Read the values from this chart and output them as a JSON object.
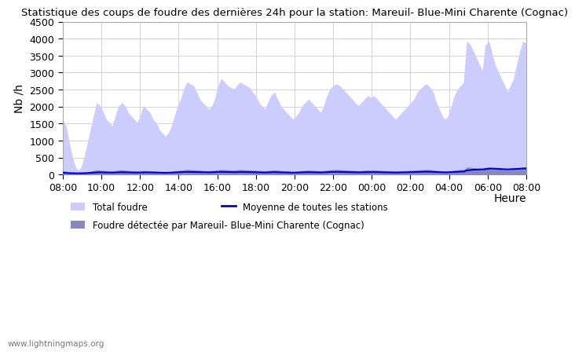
{
  "title": "Statistique des coups de foudre des dernières 24h pour la station: Mareuil- Blue-Mini Charente (Cognac)",
  "ylabel": "Nb /h",
  "xlabel": "Heure",
  "watermark": "www.lightningmaps.org",
  "x_ticks": [
    "08:00",
    "10:00",
    "12:00",
    "14:00",
    "16:00",
    "18:00",
    "20:00",
    "22:00",
    "00:00",
    "02:00",
    "04:00",
    "06:00",
    "08:00"
  ],
  "ylim": [
    0,
    4500
  ],
  "yticks": [
    0,
    500,
    1000,
    1500,
    2000,
    2500,
    3000,
    3500,
    4000,
    4500
  ],
  "total_foudre": [
    1600,
    1400,
    900,
    500,
    200,
    100,
    200,
    500,
    900,
    1300,
    1700,
    2100,
    2000,
    1800,
    1600,
    1500,
    1400,
    1700,
    2000,
    2100,
    2000,
    1800,
    1700,
    1600,
    1500,
    1700,
    2000,
    1900,
    1800,
    1600,
    1500,
    1300,
    1200,
    1100,
    1200,
    1400,
    1700,
    2000,
    2200,
    2500,
    2700,
    2650,
    2600,
    2400,
    2200,
    2100,
    2000,
    1900,
    2000,
    2200,
    2600,
    2800,
    2700,
    2600,
    2550,
    2500,
    2600,
    2700,
    2650,
    2600,
    2550,
    2400,
    2300,
    2100,
    2000,
    1900,
    2100,
    2300,
    2400,
    2200,
    2000,
    1900,
    1800,
    1700,
    1600,
    1700,
    1800,
    2000,
    2100,
    2200,
    2100,
    2000,
    1900,
    1800,
    2000,
    2300,
    2500,
    2600,
    2650,
    2600,
    2500,
    2400,
    2300,
    2200,
    2100,
    2000,
    2100,
    2200,
    2300,
    2250,
    2300,
    2200,
    2100,
    2000,
    1900,
    1800,
    1700,
    1600,
    1700,
    1800,
    1900,
    2000,
    2100,
    2200,
    2400,
    2500,
    2600,
    2650,
    2550,
    2400,
    2100,
    1900,
    1700,
    1600,
    1700,
    2000,
    2300,
    2500,
    2600,
    2700,
    3900,
    3800,
    3600,
    3400,
    3200,
    3000,
    3800,
    3900,
    3500,
    3200,
    3000,
    2800,
    2600,
    2400,
    2600,
    2800,
    3200,
    3600,
    3900,
    3850
  ],
  "station_foudre": [
    100,
    80,
    50,
    30,
    20,
    15,
    20,
    30,
    50,
    80,
    100,
    120,
    110,
    100,
    90,
    85,
    80,
    100,
    110,
    120,
    110,
    100,
    90,
    85,
    80,
    90,
    100,
    95,
    90,
    85,
    80,
    70,
    65,
    60,
    65,
    75,
    90,
    100,
    110,
    120,
    130,
    125,
    120,
    115,
    110,
    100,
    95,
    90,
    100,
    110,
    120,
    130,
    125,
    120,
    115,
    110,
    120,
    130,
    125,
    120,
    115,
    110,
    105,
    100,
    95,
    90,
    100,
    110,
    115,
    110,
    100,
    90,
    85,
    80,
    75,
    80,
    90,
    100,
    105,
    110,
    105,
    100,
    95,
    90,
    100,
    110,
    120,
    125,
    130,
    125,
    120,
    115,
    110,
    105,
    100,
    95,
    100,
    110,
    115,
    110,
    115,
    110,
    105,
    100,
    95,
    90,
    85,
    80,
    85,
    90,
    95,
    100,
    105,
    110,
    115,
    120,
    125,
    130,
    125,
    115,
    105,
    95,
    85,
    80,
    85,
    100,
    110,
    120,
    125,
    130,
    200,
    190,
    180,
    170,
    160,
    150,
    190,
    200,
    180,
    160,
    150,
    140,
    130,
    120,
    130,
    140,
    160,
    180,
    200,
    195
  ],
  "moyenne_line": [
    50,
    45,
    40,
    38,
    35,
    33,
    35,
    38,
    42,
    48,
    55,
    60,
    62,
    60,
    58,
    56,
    55,
    58,
    62,
    65,
    63,
    60,
    58,
    56,
    55,
    57,
    60,
    62,
    60,
    58,
    56,
    54,
    52,
    50,
    52,
    55,
    60,
    65,
    68,
    72,
    75,
    74,
    73,
    70,
    68,
    66,
    65,
    63,
    65,
    68,
    72,
    76,
    74,
    72,
    70,
    68,
    70,
    73,
    72,
    70,
    68,
    66,
    64,
    62,
    60,
    58,
    62,
    66,
    68,
    66,
    62,
    59,
    57,
    55,
    53,
    55,
    58,
    62,
    65,
    67,
    65,
    63,
    61,
    59,
    62,
    67,
    72,
    74,
    76,
    74,
    72,
    70,
    68,
    66,
    64,
    62,
    64,
    67,
    70,
    68,
    70,
    68,
    66,
    64,
    62,
    60,
    58,
    56,
    58,
    60,
    63,
    66,
    68,
    70,
    74,
    77,
    80,
    82,
    80,
    76,
    72,
    68,
    64,
    62,
    64,
    68,
    74,
    80,
    84,
    88,
    120,
    130,
    140,
    145,
    148,
    150,
    160,
    170,
    175,
    170,
    165,
    160,
    155,
    150,
    155,
    160,
    165,
    170,
    175,
    180
  ],
  "bg_color": "#ffffff",
  "plot_bg_color": "#ffffff",
  "grid_color": "#cccccc",
  "fill_total_color": "#ccccff",
  "fill_station_color": "#8888bb",
  "line_color": "#0000cc",
  "title_fontsize": 9.5,
  "tick_fontsize": 9,
  "ylabel_fontsize": 10,
  "legend_fontsize": 8.5
}
